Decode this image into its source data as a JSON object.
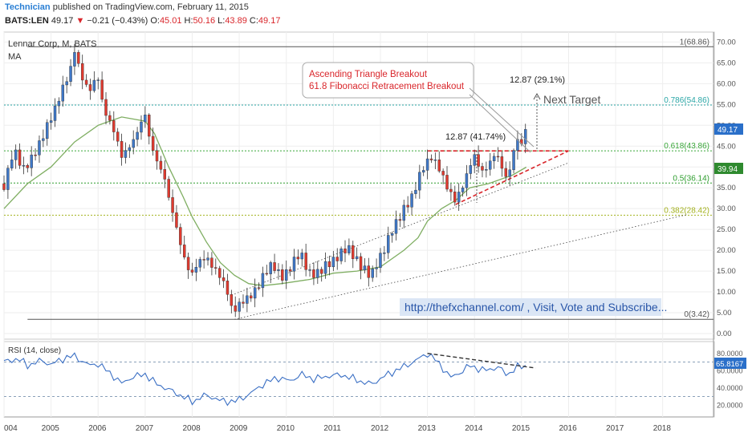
{
  "header": {
    "user": "Technician",
    "published_text": "published on TradingView.com, February 11, 2015",
    "ohlc": {
      "symbol": "BATS:LEN",
      "last": "49.17",
      "arrow": "▼",
      "change": "−0.21 (−0.43%)",
      "o_label": "O:",
      "o_value": "45.01",
      "h_label": "H:",
      "h_value": "50.16",
      "l_label": "L:",
      "l_value": "43.89",
      "c_label": "C:",
      "c_value": "49.17"
    }
  },
  "legend": {
    "title": "Lennar Corp, M, BATS",
    "ma": "MA",
    "rsi": "RSI (14, close)"
  },
  "annotations": {
    "box_line1": "Ascending Triangle Breakout",
    "box_line2": "61.8 Fibonacci Retracement Breakout",
    "target_pct": "12.87 (29.1%)",
    "next_target": "Next Target",
    "pattern_pct": "12.87 (41.74%)",
    "website": "http://thefxchannel.com/ , Visit, Vote and Subscribe..."
  },
  "fib_levels": [
    {
      "label": "1(68.86)",
      "value": 68.86,
      "color": "#555555"
    },
    {
      "label": "0.786(54.86)",
      "value": 54.86,
      "color": "#2aa6a6"
    },
    {
      "label": "0.618(43.86)",
      "value": 43.86,
      "color": "#3aa63a"
    },
    {
      "label": "0.5(36.14)",
      "value": 36.14,
      "color": "#2f9e2f"
    },
    {
      "label": "0.382(28.42)",
      "value": 28.42,
      "color": "#a4b21e"
    },
    {
      "label": "0(3.42)",
      "value": 3.42,
      "color": "#555555"
    }
  ],
  "price_axis": {
    "ticks": [
      "0.00",
      "5.00",
      "10.00",
      "15.00",
      "20.00",
      "25.00",
      "30.00",
      "35.00",
      "40.00",
      "45.00",
      "50.00",
      "55.00",
      "60.00",
      "65.00",
      "70.00"
    ],
    "last_price_label": "49.17",
    "ma_label": "39.94",
    "last_color": "#2a6fc9",
    "ma_color": "#2f8a2f"
  },
  "rsi_axis": {
    "ticks": [
      "20.0000",
      "40.0000",
      "60.0000",
      "80.0000"
    ],
    "last_label": "65.8167",
    "last_color": "#2a6fc9"
  },
  "time_axis": {
    "labels": [
      "004",
      "2005",
      "2006",
      "2007",
      "2008",
      "2009",
      "2010",
      "2011",
      "2012",
      "2013",
      "2014",
      "2015",
      "2016",
      "2017",
      "2018"
    ]
  },
  "chart_data": {
    "type": "candlestick",
    "title": "Lennar Corp, M, BATS",
    "interval": "monthly",
    "x_range": [
      2004.0,
      2018.5
    ],
    "ylim": [
      0,
      72
    ],
    "close_path": [
      [
        2004.0,
        36
      ],
      [
        2004.2,
        44
      ],
      [
        2004.4,
        39
      ],
      [
        2004.6,
        43
      ],
      [
        2004.8,
        46
      ],
      [
        2005.0,
        52
      ],
      [
        2005.2,
        58
      ],
      [
        2005.4,
        62
      ],
      [
        2005.5,
        68
      ],
      [
        2005.6,
        64
      ],
      [
        2005.8,
        58
      ],
      [
        2006.0,
        61
      ],
      [
        2006.1,
        55
      ],
      [
        2006.3,
        50
      ],
      [
        2006.4,
        46
      ],
      [
        2006.5,
        42
      ],
      [
        2006.6,
        44
      ],
      [
        2006.8,
        48
      ],
      [
        2006.9,
        50
      ],
      [
        2007.0,
        52
      ],
      [
        2007.1,
        46
      ],
      [
        2007.25,
        42
      ],
      [
        2007.4,
        38
      ],
      [
        2007.5,
        32
      ],
      [
        2007.6,
        28
      ],
      [
        2007.7,
        24
      ],
      [
        2007.8,
        20
      ],
      [
        2007.9,
        16
      ],
      [
        2008.0,
        14
      ],
      [
        2008.15,
        17
      ],
      [
        2008.3,
        19
      ],
      [
        2008.45,
        16
      ],
      [
        2008.6,
        13
      ],
      [
        2008.75,
        10
      ],
      [
        2008.85,
        6
      ],
      [
        2009.0,
        7
      ],
      [
        2009.2,
        8
      ],
      [
        2009.35,
        11
      ],
      [
        2009.5,
        14
      ],
      [
        2009.7,
        16
      ],
      [
        2009.9,
        14
      ],
      [
        2010.1,
        16
      ],
      [
        2010.3,
        19
      ],
      [
        2010.5,
        15
      ],
      [
        2010.7,
        14
      ],
      [
        2010.9,
        17
      ],
      [
        2011.1,
        19
      ],
      [
        2011.3,
        20
      ],
      [
        2011.5,
        18
      ],
      [
        2011.7,
        15
      ],
      [
        2011.8,
        13
      ],
      [
        2011.9,
        16
      ],
      [
        2012.05,
        20
      ],
      [
        2012.2,
        24
      ],
      [
        2012.4,
        27
      ],
      [
        2012.5,
        30
      ],
      [
        2012.7,
        34
      ],
      [
        2012.85,
        38
      ],
      [
        2013.0,
        41
      ],
      [
        2013.1,
        43
      ],
      [
        2013.25,
        40
      ],
      [
        2013.4,
        35
      ],
      [
        2013.5,
        33
      ],
      [
        2013.6,
        32
      ],
      [
        2013.7,
        35
      ],
      [
        2013.8,
        37
      ],
      [
        2013.9,
        40
      ],
      [
        2014.0,
        42
      ],
      [
        2014.15,
        39
      ],
      [
        2014.3,
        41
      ],
      [
        2014.45,
        43
      ],
      [
        2014.6,
        39
      ],
      [
        2014.7,
        37
      ],
      [
        2014.8,
        43
      ],
      [
        2014.9,
        47
      ],
      [
        2015.0,
        45
      ],
      [
        2015.1,
        49.17
      ]
    ],
    "ma_path": [
      [
        2004.0,
        30
      ],
      [
        2004.5,
        36
      ],
      [
        2005.0,
        40
      ],
      [
        2005.5,
        46
      ],
      [
        2006.0,
        50
      ],
      [
        2006.5,
        52
      ],
      [
        2007.0,
        51
      ],
      [
        2007.2,
        48
      ],
      [
        2007.5,
        40
      ],
      [
        2007.8,
        33
      ],
      [
        2008.0,
        28
      ],
      [
        2008.3,
        22
      ],
      [
        2008.6,
        17
      ],
      [
        2008.9,
        14
      ],
      [
        2009.2,
        12
      ],
      [
        2009.5,
        11.5
      ],
      [
        2009.9,
        12
      ],
      [
        2010.5,
        13
      ],
      [
        2011.0,
        14.5
      ],
      [
        2011.5,
        15
      ],
      [
        2012.0,
        16
      ],
      [
        2012.5,
        20
      ],
      [
        2012.8,
        23
      ],
      [
        2013.0,
        27
      ],
      [
        2013.3,
        30
      ],
      [
        2013.6,
        32
      ],
      [
        2013.9,
        35
      ],
      [
        2014.3,
        36
      ],
      [
        2014.8,
        38
      ],
      [
        2015.1,
        39.94
      ]
    ],
    "rsi_path": [
      [
        2004.0,
        70
      ],
      [
        2004.3,
        74
      ],
      [
        2004.5,
        66
      ],
      [
        2004.8,
        72
      ],
      [
        2005.0,
        67
      ],
      [
        2005.3,
        75
      ],
      [
        2005.5,
        77
      ],
      [
        2005.8,
        66
      ],
      [
        2006.0,
        68
      ],
      [
        2006.3,
        55
      ],
      [
        2006.5,
        45
      ],
      [
        2006.7,
        52
      ],
      [
        2007.0,
        56
      ],
      [
        2007.2,
        46
      ],
      [
        2007.5,
        38
      ],
      [
        2007.8,
        30
      ],
      [
        2008.0,
        24
      ],
      [
        2008.3,
        32
      ],
      [
        2008.6,
        25
      ],
      [
        2008.9,
        24
      ],
      [
        2009.2,
        32
      ],
      [
        2009.5,
        44
      ],
      [
        2009.8,
        52
      ],
      [
        2010.1,
        48
      ],
      [
        2010.3,
        56
      ],
      [
        2010.6,
        50
      ],
      [
        2010.9,
        54
      ],
      [
        2011.2,
        55
      ],
      [
        2011.5,
        49
      ],
      [
        2011.8,
        44
      ],
      [
        2012.1,
        54
      ],
      [
        2012.4,
        62
      ],
      [
        2012.7,
        70
      ],
      [
        2013.0,
        80
      ],
      [
        2013.2,
        71
      ],
      [
        2013.5,
        52
      ],
      [
        2013.7,
        58
      ],
      [
        2013.9,
        66
      ],
      [
        2014.2,
        60
      ],
      [
        2014.5,
        64
      ],
      [
        2014.7,
        55
      ],
      [
        2014.9,
        64
      ],
      [
        2015.1,
        65.82
      ]
    ],
    "rsi_ylim": [
      10,
      90
    ],
    "rsi_levels": [
      70,
      30
    ],
    "trendlines": [
      {
        "from": [
          2008.9,
          3.42
        ],
        "to": [
          2018.5,
          28.5
        ],
        "style": "dotted",
        "color": "#444444"
      },
      {
        "from": [
          2008.9,
          9.5
        ],
        "to": [
          2016.0,
          41.0
        ],
        "style": "dotted",
        "color": "#444444"
      },
      {
        "from": [
          2013.0,
          43.86
        ],
        "to": [
          2015.1,
          43.86
        ],
        "style": "dashed",
        "color": "#d9262b"
      },
      {
        "from": [
          2013.6,
          31.0
        ],
        "to": [
          2016.0,
          43.86
        ],
        "style": "dashed",
        "color": "#d9262b"
      }
    ],
    "rsi_trendline": {
      "from": [
        2013.0,
        80
      ],
      "to": [
        2015.3,
        63
      ]
    },
    "legend_position": "top-left"
  }
}
